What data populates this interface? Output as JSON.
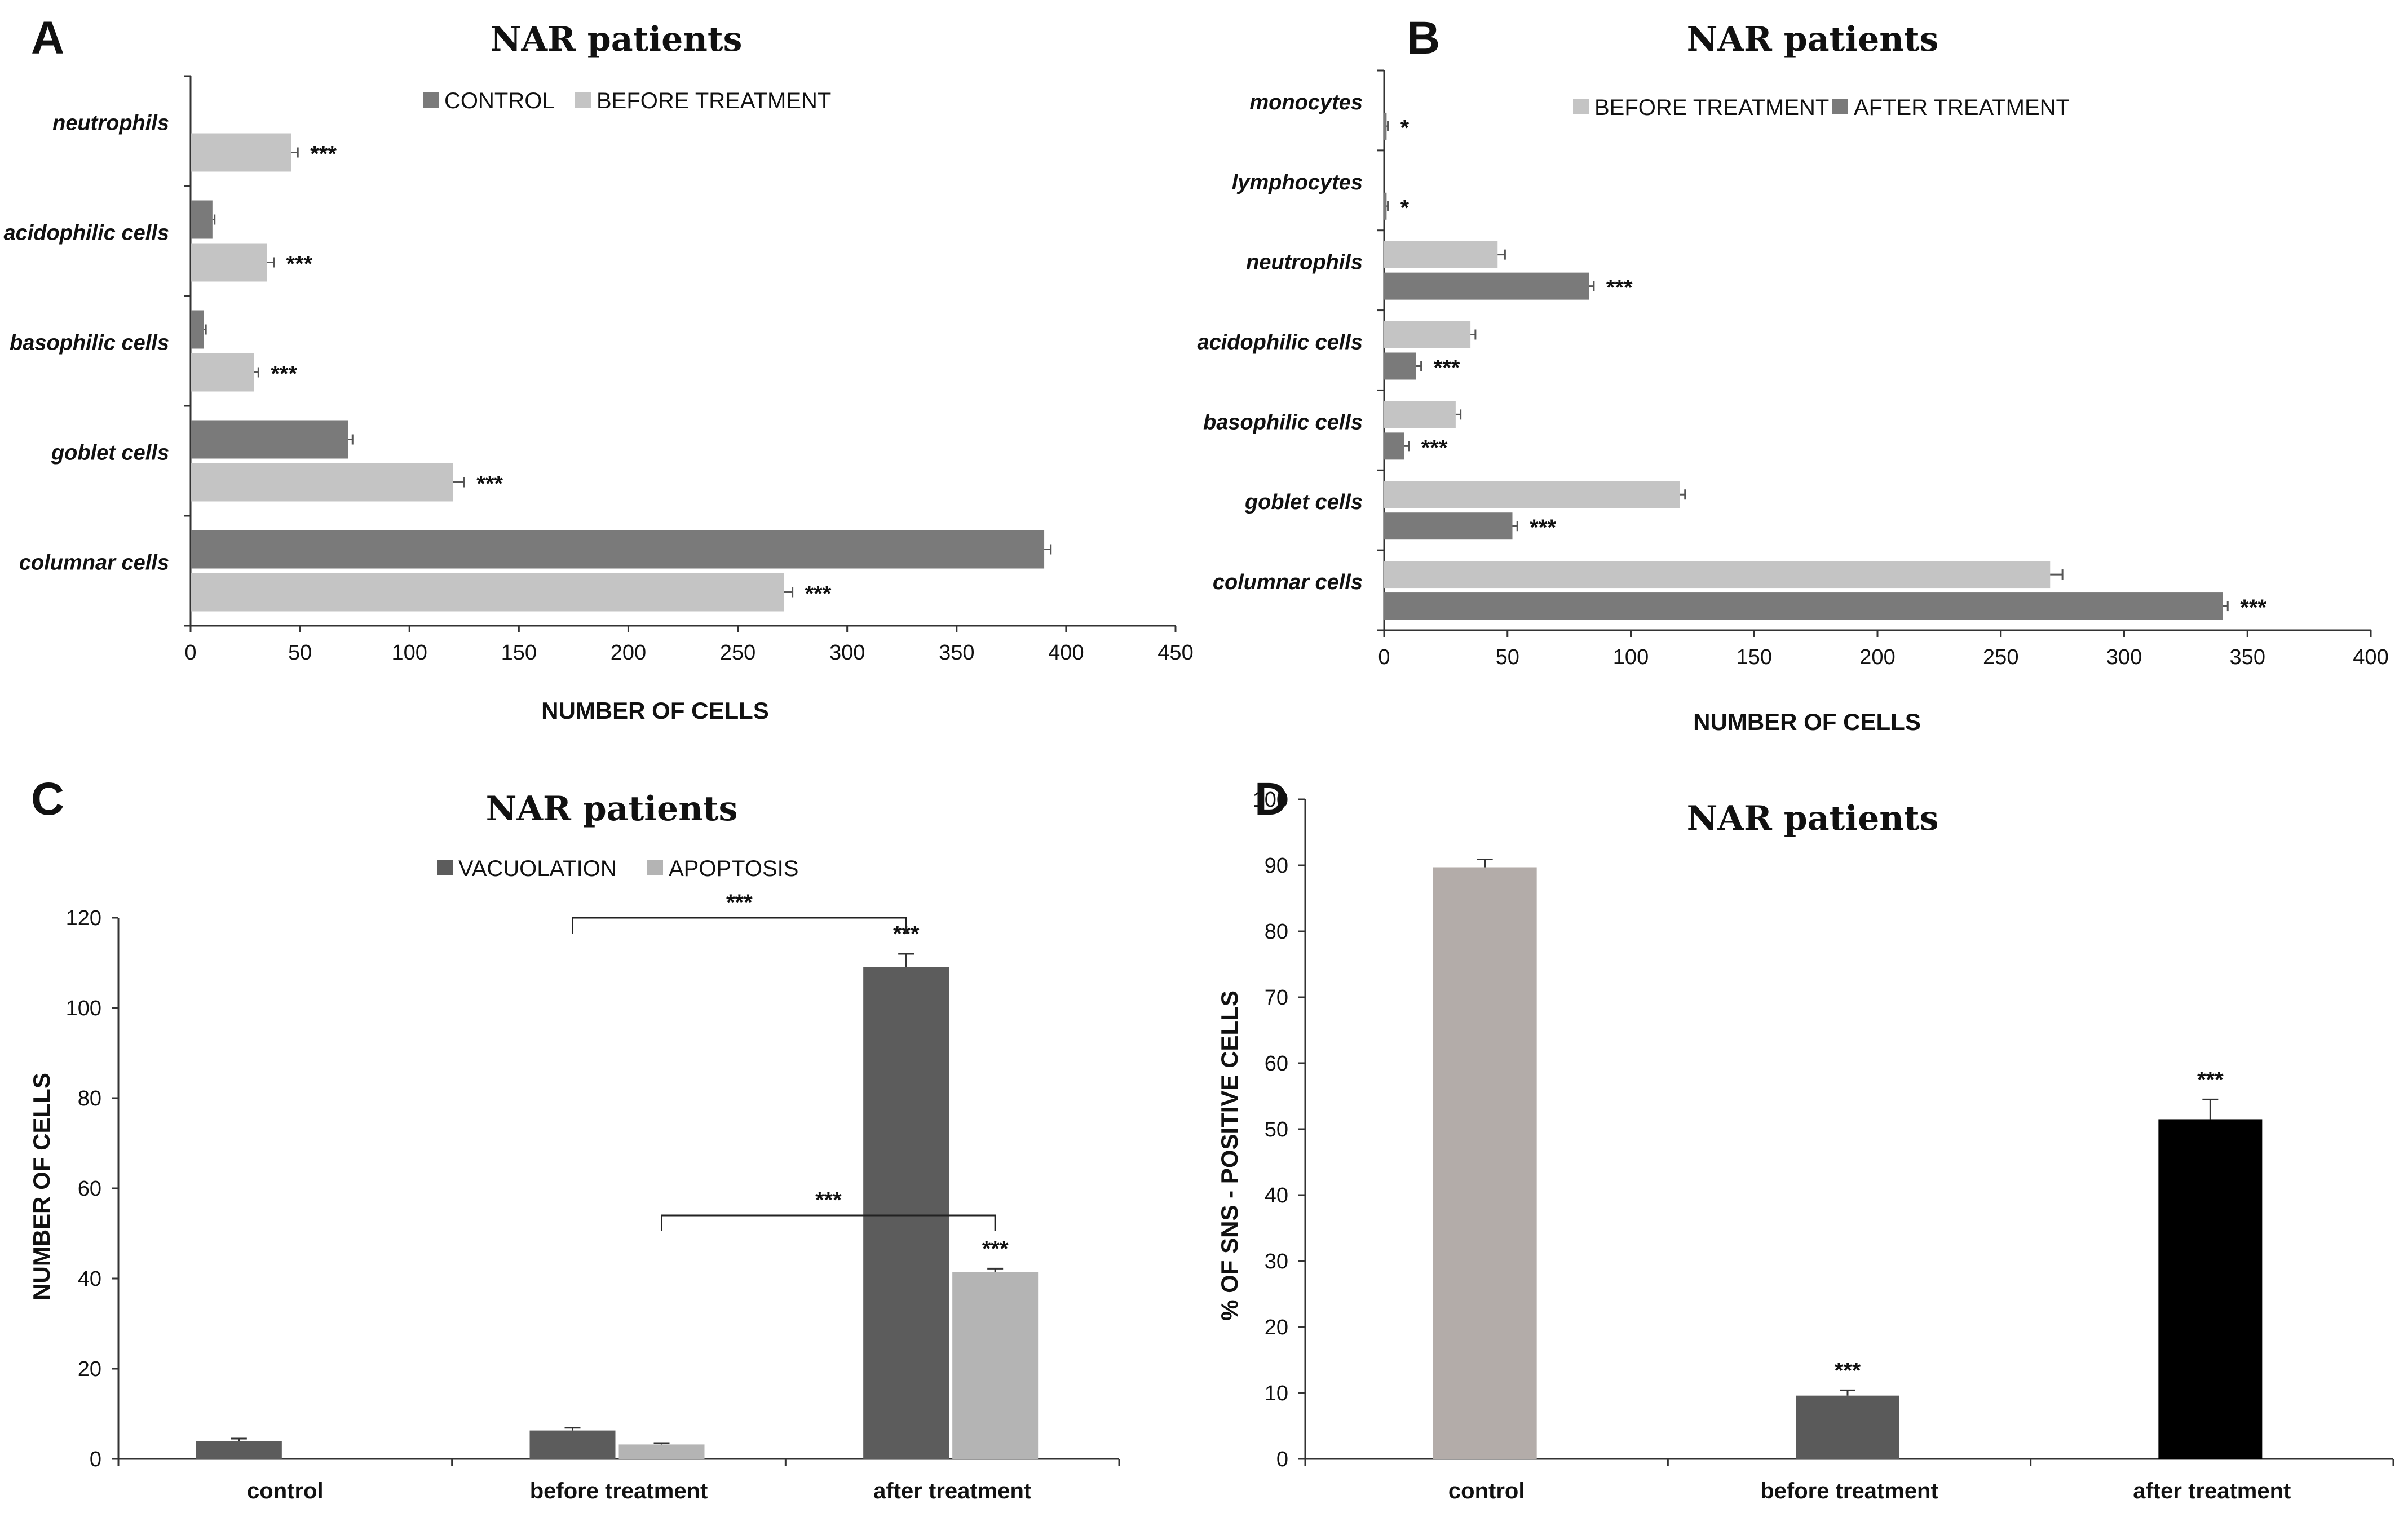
{
  "panels": [
    {
      "id": "A",
      "letter": "A",
      "orientation": "horizontal",
      "title": "NAR patients",
      "axis_label": "NUMBER OF CELLS",
      "axis_ticks": [
        "0",
        "50",
        "100",
        "150",
        "200",
        "250",
        "300",
        "350",
        "400",
        "450"
      ],
      "legend": [
        {
          "label": "CONTROL",
          "color": "#7a7a7a"
        },
        {
          "label": "BEFORE TREATMENT",
          "color": "#c4c4c4"
        }
      ]
    },
    {
      "id": "B",
      "letter": "B",
      "orientation": "horizontal",
      "title": "NAR patients",
      "axis_label": "NUMBER OF CELLS",
      "axis_ticks": [
        "0",
        "50",
        "100",
        "150",
        "200",
        "250",
        "300",
        "350",
        "400"
      ],
      "legend": [
        {
          "label": "BEFORE TREATMENT",
          "color": "#c4c4c4"
        },
        {
          "label": "AFTER TREATMENT",
          "color": "#7a7a7a"
        }
      ]
    },
    {
      "id": "C",
      "letter": "C",
      "orientation": "vertical",
      "title": "NAR patients",
      "axis_label": "NUMBER OF CELLS",
      "axis_ticks": [
        "0",
        "20",
        "40",
        "60",
        "80",
        "100",
        "120"
      ],
      "legend": [
        {
          "label": "VACUOLATION",
          "color": "#5c5c5c"
        },
        {
          "label": "APOPTOSIS",
          "color": "#b4b4b4"
        }
      ],
      "brackets": [
        {
          "label": "***",
          "from": "before treatment",
          "to": "after treatment",
          "series": "VACUOLATION",
          "level": 120
        },
        {
          "label": "***",
          "from": "before treatment",
          "to": "after treatment",
          "series": "APOPTOSIS",
          "level": 54
        }
      ]
    },
    {
      "id": "D",
      "letter": "D",
      "orientation": "vertical",
      "title": "NAR patients",
      "axis_label": "% OF SNS - POSITIVE CELLS",
      "axis_ticks": [
        "0",
        "10",
        "20",
        "30",
        "40",
        "50",
        "60",
        "70",
        "80",
        "90",
        "100"
      ],
      "legend": []
    }
  ],
  "chart_data": [
    {
      "panel": "A",
      "type": "bar",
      "orientation": "horizontal",
      "title": "NAR patients",
      "xlabel": "NUMBER OF CELLS",
      "ylabel": "",
      "xlim": [
        0,
        450
      ],
      "categories": [
        "neutrophils",
        "acidophilic cells",
        "basophilic cells",
        "goblet cells",
        "columnar cells"
      ],
      "series": [
        {
          "name": "CONTROL",
          "color": "#7a7a7a",
          "values": [
            0,
            10,
            6,
            72,
            390
          ],
          "errors": [
            0,
            1,
            1,
            2,
            3
          ]
        },
        {
          "name": "BEFORE TREATMENT",
          "color": "#c4c4c4",
          "values": [
            46,
            35,
            29,
            120,
            271
          ],
          "errors": [
            3,
            3,
            2,
            5,
            4
          ]
        }
      ],
      "annotations": [
        {
          "category": "neutrophils",
          "series": "BEFORE TREATMENT",
          "text": "***"
        },
        {
          "category": "acidophilic cells",
          "series": "BEFORE TREATMENT",
          "text": "***"
        },
        {
          "category": "basophilic cells",
          "series": "BEFORE TREATMENT",
          "text": "***"
        },
        {
          "category": "goblet cells",
          "series": "BEFORE TREATMENT",
          "text": "***"
        },
        {
          "category": "columnar cells",
          "series": "BEFORE TREATMENT",
          "text": "***"
        }
      ],
      "grid": false,
      "legend_position": "top-center"
    },
    {
      "panel": "B",
      "type": "bar",
      "orientation": "horizontal",
      "title": "NAR patients",
      "xlabel": "NUMBER OF CELLS",
      "ylabel": "",
      "xlim": [
        0,
        400
      ],
      "categories": [
        "monocytes",
        "lymphocytes",
        "neutrophils",
        "acidophilic cells",
        "basophilic cells",
        "goblet cells",
        "columnar cells"
      ],
      "series": [
        {
          "name": "BEFORE TREATMENT",
          "color": "#c4c4c4",
          "values": [
            0,
            0,
            46,
            35,
            29,
            120,
            270
          ],
          "errors": [
            0,
            0,
            3,
            2,
            2,
            2,
            5
          ]
        },
        {
          "name": "AFTER TREATMENT",
          "color": "#7a7a7a",
          "values": [
            1,
            1,
            83,
            13,
            8,
            52,
            340
          ],
          "errors": [
            0.5,
            0.5,
            2,
            2,
            2,
            2,
            2
          ]
        }
      ],
      "annotations": [
        {
          "category": "monocytes",
          "series": "AFTER TREATMENT",
          "text": "*"
        },
        {
          "category": "lymphocytes",
          "series": "AFTER TREATMENT",
          "text": "*"
        },
        {
          "category": "neutrophils",
          "series": "AFTER TREATMENT",
          "text": "***"
        },
        {
          "category": "acidophilic cells",
          "series": "AFTER TREATMENT",
          "text": "***"
        },
        {
          "category": "basophilic cells",
          "series": "AFTER TREATMENT",
          "text": "***"
        },
        {
          "category": "goblet cells",
          "series": "AFTER TREATMENT",
          "text": "***"
        },
        {
          "category": "columnar cells",
          "series": "AFTER TREATMENT",
          "text": "***"
        }
      ],
      "grid": false,
      "legend_position": "top-center"
    },
    {
      "panel": "C",
      "type": "bar",
      "orientation": "vertical",
      "title": "NAR patients",
      "xlabel": "",
      "ylabel": "NUMBER OF CELLS",
      "ylim": [
        0,
        120
      ],
      "categories": [
        "control",
        "before treatment",
        "after treatment"
      ],
      "series": [
        {
          "name": "VACUOLATION",
          "color": "#5c5c5c",
          "values": [
            4,
            6.3,
            109
          ],
          "errors": [
            0.5,
            0.6,
            3
          ]
        },
        {
          "name": "APOPTOSIS",
          "color": "#b4b4b4",
          "values": [
            0,
            3.2,
            41.5
          ],
          "errors": [
            0,
            0.3,
            0.7
          ]
        }
      ],
      "annotations": [
        {
          "category": "after treatment",
          "series": "VACUOLATION",
          "text": "***"
        },
        {
          "category": "after treatment",
          "series": "APOPTOSIS",
          "text": "***"
        }
      ],
      "grid": false,
      "legend_position": "top-center"
    },
    {
      "panel": "D",
      "type": "bar",
      "orientation": "vertical",
      "title": "NAR patients",
      "xlabel": "",
      "ylabel": "% OF SNS - POSITIVE CELLS",
      "ylim": [
        0,
        100
      ],
      "categories": [
        "control",
        "before treatment",
        "after treatment"
      ],
      "series": [
        {
          "values": [
            89.7,
            9.6,
            51.5
          ],
          "errors": [
            1.2,
            0.8,
            3
          ],
          "colors": [
            "#b3aca9",
            "#5a5a5a",
            "#000000"
          ]
        }
      ],
      "annotations": [
        {
          "category": "before treatment",
          "text": "***"
        },
        {
          "category": "after treatment",
          "text": "***"
        }
      ],
      "grid": false,
      "legend_position": "none"
    }
  ]
}
